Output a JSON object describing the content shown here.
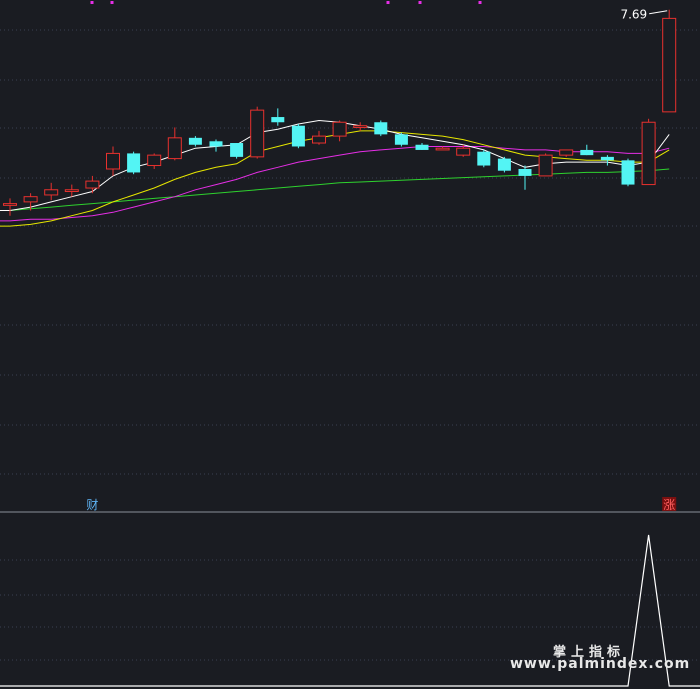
{
  "chart_data": {
    "type": "candlestick",
    "max_price_label": "7.69",
    "price_range": [
      4.85,
      7.75
    ],
    "indicator_range": [
      0,
      1
    ],
    "colors": {
      "background": "#1a1c22",
      "up": "#e8312e",
      "down": "#53f4f4",
      "ma1": "#ffffff",
      "ma2": "#e6e600",
      "ma3": "#e62ee6",
      "ma4": "#2ed12e",
      "indicator": "#ffffff",
      "dot": "#e62ee6",
      "grid": "#3a3f52"
    },
    "candles": [
      {
        "o": 6.61,
        "c": 6.62,
        "h": 6.65,
        "l": 6.55
      },
      {
        "o": 6.63,
        "c": 6.66,
        "h": 6.68,
        "l": 6.58
      },
      {
        "o": 6.67,
        "c": 6.7,
        "h": 6.74,
        "l": 6.64
      },
      {
        "o": 6.69,
        "c": 6.7,
        "h": 6.73,
        "l": 6.66
      },
      {
        "o": 6.71,
        "c": 6.75,
        "h": 6.78,
        "l": 6.68
      },
      {
        "o": 6.82,
        "c": 6.91,
        "h": 6.95,
        "l": 6.78
      },
      {
        "o": 6.91,
        "c": 6.8,
        "h": 6.92,
        "l": 6.79
      },
      {
        "o": 6.84,
        "c": 6.9,
        "h": 6.91,
        "l": 6.82
      },
      {
        "o": 6.88,
        "c": 7.0,
        "h": 7.06,
        "l": 6.87
      },
      {
        "o": 7.0,
        "c": 6.96,
        "h": 7.01,
        "l": 6.95
      },
      {
        "o": 6.98,
        "c": 6.95,
        "h": 6.99,
        "l": 6.92
      },
      {
        "o": 6.97,
        "c": 6.89,
        "h": 6.97,
        "l": 6.88
      },
      {
        "o": 6.89,
        "c": 7.16,
        "h": 7.18,
        "l": 6.88
      },
      {
        "o": 7.12,
        "c": 7.09,
        "h": 7.17,
        "l": 7.07
      },
      {
        "o": 7.07,
        "c": 6.95,
        "h": 7.08,
        "l": 6.94
      },
      {
        "o": 6.97,
        "c": 7.01,
        "h": 7.04,
        "l": 6.96
      },
      {
        "o": 7.01,
        "c": 7.09,
        "h": 7.1,
        "l": 6.98
      },
      {
        "o": 7.06,
        "c": 7.07,
        "h": 7.09,
        "l": 7.04
      },
      {
        "o": 7.09,
        "c": 7.02,
        "h": 7.1,
        "l": 7.01
      },
      {
        "o": 7.02,
        "c": 6.96,
        "h": 7.03,
        "l": 6.95
      },
      {
        "o": 6.96,
        "c": 6.93,
        "h": 6.97,
        "l": 6.93
      },
      {
        "o": 6.93,
        "c": 6.94,
        "h": 6.95,
        "l": 6.93
      },
      {
        "o": 6.9,
        "c": 6.94,
        "h": 6.96,
        "l": 6.89
      },
      {
        "o": 6.92,
        "c": 6.84,
        "h": 6.93,
        "l": 6.83
      },
      {
        "o": 6.88,
        "c": 6.81,
        "h": 6.89,
        "l": 6.8
      },
      {
        "o": 6.82,
        "c": 6.78,
        "h": 6.84,
        "l": 6.7
      },
      {
        "o": 6.78,
        "c": 6.9,
        "h": 6.91,
        "l": 6.78
      },
      {
        "o": 6.9,
        "c": 6.93,
        "h": 6.93,
        "l": 6.89
      },
      {
        "o": 6.93,
        "c": 6.9,
        "h": 6.96,
        "l": 6.9
      },
      {
        "o": 6.89,
        "c": 6.87,
        "h": 6.9,
        "l": 6.84
      },
      {
        "o": 6.87,
        "c": 6.73,
        "h": 6.88,
        "l": 6.72
      },
      {
        "o": 6.73,
        "c": 7.09,
        "h": 7.11,
        "l": 6.73
      },
      {
        "o": 7.15,
        "c": 7.69,
        "h": 7.74,
        "l": 7.15
      }
    ],
    "ma1": [
      6.58,
      6.6,
      6.63,
      6.66,
      6.69,
      6.78,
      6.83,
      6.86,
      6.9,
      6.94,
      6.95,
      6.96,
      7.03,
      7.05,
      7.08,
      7.1,
      7.09,
      7.07,
      7.05,
      7.02,
      7.0,
      6.98,
      6.96,
      6.93,
      6.88,
      6.83,
      6.85,
      6.86,
      6.86,
      6.86,
      6.84,
      6.86,
      7.02
    ],
    "ma2": [
      6.49,
      6.5,
      6.52,
      6.55,
      6.58,
      6.63,
      6.67,
      6.71,
      6.76,
      6.8,
      6.83,
      6.85,
      6.92,
      6.95,
      6.98,
      7.0,
      7.02,
      7.04,
      7.04,
      7.03,
      7.02,
      7.01,
      6.99,
      6.96,
      6.93,
      6.9,
      6.89,
      6.88,
      6.87,
      6.87,
      6.86,
      6.86,
      6.93
    ],
    "ma3": [
      6.52,
      6.53,
      6.53,
      6.54,
      6.55,
      6.57,
      6.6,
      6.63,
      6.66,
      6.7,
      6.73,
      6.76,
      6.8,
      6.83,
      6.86,
      6.88,
      6.9,
      6.92,
      6.93,
      6.94,
      6.95,
      6.95,
      6.95,
      6.95,
      6.94,
      6.93,
      6.93,
      6.92,
      6.92,
      6.92,
      6.91,
      6.91,
      6.94
    ],
    "ma4": [
      6.58,
      6.59,
      6.6,
      6.61,
      6.62,
      6.63,
      6.64,
      6.65,
      6.66,
      6.67,
      6.68,
      6.69,
      6.7,
      6.71,
      6.72,
      6.73,
      6.74,
      6.745,
      6.75,
      6.755,
      6.76,
      6.765,
      6.77,
      6.775,
      6.78,
      6.785,
      6.79,
      6.795,
      6.8,
      6.8,
      6.805,
      6.81,
      6.82
    ],
    "indicator": [
      0,
      0,
      0,
      0,
      0,
      0,
      0,
      0,
      0,
      0,
      0,
      0,
      0,
      0,
      0,
      0,
      0,
      0,
      0,
      0,
      0,
      0,
      0,
      0,
      0,
      0,
      0,
      0,
      0,
      0,
      0,
      1,
      0
    ],
    "markers": [
      {
        "index": 4,
        "text": "财",
        "color": "#5fb4f5"
      },
      {
        "index": 32,
        "text": "涨",
        "color": "#ff6060",
        "bg": "#7a1010"
      }
    ],
    "top_dots_count": 5
  },
  "watermark": {
    "line1": "掌上指标",
    "line2": "www.palmindex.com"
  }
}
